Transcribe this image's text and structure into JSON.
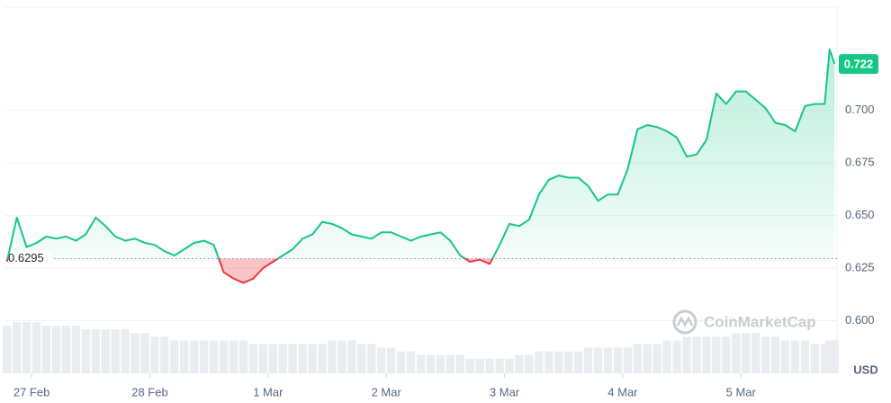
{
  "chart_data": {
    "type": "line",
    "currency": "USD",
    "watermark": "CoinMarketCap",
    "baseline": 0.6295,
    "color_up": "#16c784",
    "color_down": "#ea3943",
    "volume_color": "#e9ecf0",
    "grid": true,
    "xlim": [
      -5.5,
      163.5
    ],
    "xticks": [
      {
        "value": 0,
        "label": "27 Feb"
      },
      {
        "value": 24,
        "label": "28 Feb"
      },
      {
        "value": 48,
        "label": "1 Mar"
      },
      {
        "value": 72,
        "label": "2 Mar"
      },
      {
        "value": 96,
        "label": "3 Mar"
      },
      {
        "value": 120,
        "label": "4 Mar"
      },
      {
        "value": 144,
        "label": "5 Mar"
      }
    ],
    "ylim": [
      0.575,
      0.749
    ],
    "yticks": [
      {
        "value": 0.6,
        "label": "0.600"
      },
      0.625,
      {
        "value": 0.65,
        "label": "0.650"
      },
      0.675,
      {
        "value": 0.7,
        "label": "0.700"
      }
    ],
    "y2lim": [
      0,
      100
    ],
    "y2ticks": [],
    "x": [
      -5,
      -3,
      -1,
      1,
      3,
      5,
      7,
      9,
      11,
      13,
      15,
      17,
      19,
      21,
      23,
      25,
      27,
      29,
      31,
      33,
      35,
      37,
      39,
      41,
      43,
      45,
      47,
      49,
      51,
      53,
      55,
      57,
      59,
      61,
      63,
      65,
      67,
      69,
      71,
      73,
      75,
      77,
      79,
      81,
      83,
      85,
      87,
      89,
      91,
      93,
      95,
      97,
      99,
      101,
      103,
      105,
      107,
      109,
      111,
      113,
      115,
      117,
      119,
      121,
      123,
      125,
      127,
      129,
      131,
      133,
      135,
      137,
      139,
      141,
      143,
      145,
      147,
      149,
      151,
      153,
      155,
      157,
      159,
      161,
      162,
      163
    ],
    "values": [
      0.628,
      0.649,
      0.635,
      0.637,
      0.64,
      0.639,
      0.64,
      0.638,
      0.641,
      0.649,
      0.645,
      0.64,
      0.638,
      0.639,
      0.637,
      0.636,
      0.633,
      0.631,
      0.634,
      0.637,
      0.638,
      0.636,
      0.623,
      0.62,
      0.618,
      0.62,
      0.625,
      0.628,
      0.631,
      0.634,
      0.639,
      0.641,
      0.647,
      0.646,
      0.644,
      0.641,
      0.64,
      0.639,
      0.642,
      0.642,
      0.64,
      0.638,
      0.64,
      0.641,
      0.642,
      0.638,
      0.631,
      0.628,
      0.629,
      0.627,
      0.636,
      0.646,
      0.645,
      0.648,
      0.66,
      0.667,
      0.669,
      0.668,
      0.668,
      0.664,
      0.657,
      0.66,
      0.66,
      0.672,
      0.691,
      0.693,
      0.692,
      0.69,
      0.687,
      0.678,
      0.679,
      0.686,
      0.708,
      0.703,
      0.709,
      0.709,
      0.705,
      0.701,
      0.694,
      0.693,
      0.69,
      0.702,
      0.703,
      0.703,
      0.729,
      0.722
    ],
    "volume": {
      "name": "Volume",
      "axis": "y2",
      "values": [
        13,
        14,
        14,
        14,
        13,
        13,
        13,
        13,
        12,
        12,
        12,
        12,
        12,
        11,
        11,
        10,
        10,
        9,
        9,
        9,
        9,
        9,
        9,
        9,
        9,
        8,
        8,
        8,
        8,
        8,
        8,
        8,
        8,
        9,
        9,
        9,
        8,
        8,
        7,
        7,
        6,
        6,
        5,
        5,
        5,
        5,
        5,
        4,
        4,
        4,
        4,
        4,
        5,
        5,
        6,
        6,
        6,
        6,
        6,
        7,
        7,
        7,
        7,
        7,
        8,
        8,
        8,
        9,
        9,
        10,
        10,
        10,
        10,
        10,
        11,
        11,
        11,
        10,
        10,
        9,
        9,
        9,
        8,
        8,
        9,
        9
      ]
    }
  }
}
